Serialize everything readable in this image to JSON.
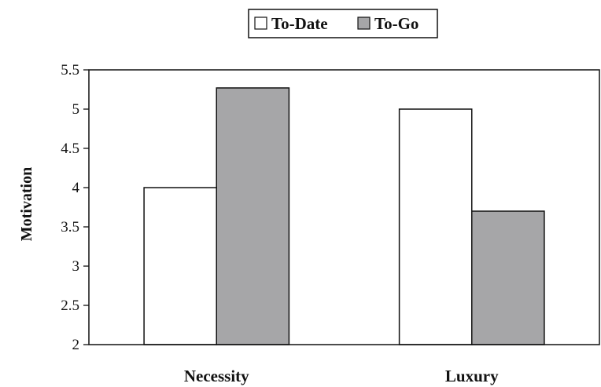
{
  "chart_data": {
    "type": "bar",
    "categories": [
      "Necessity",
      "Luxury"
    ],
    "series": [
      {
        "name": "To-Date",
        "values": [
          4.0,
          5.0
        ],
        "color": "#ffffff"
      },
      {
        "name": "To-Go",
        "values": [
          5.27,
          3.7
        ],
        "color": "#a6a6a8"
      }
    ],
    "xlabel": "",
    "ylabel": "Motivation",
    "ylim": [
      2,
      5.5
    ],
    "yticks": [
      2,
      2.5,
      3,
      3.5,
      4,
      4.5,
      5,
      5.5
    ],
    "ytick_labels": [
      "2",
      "2.5",
      "3",
      "3.5",
      "4",
      "4.5",
      "5",
      "5.5"
    ],
    "legend_position": "top-center",
    "grid": false
  }
}
